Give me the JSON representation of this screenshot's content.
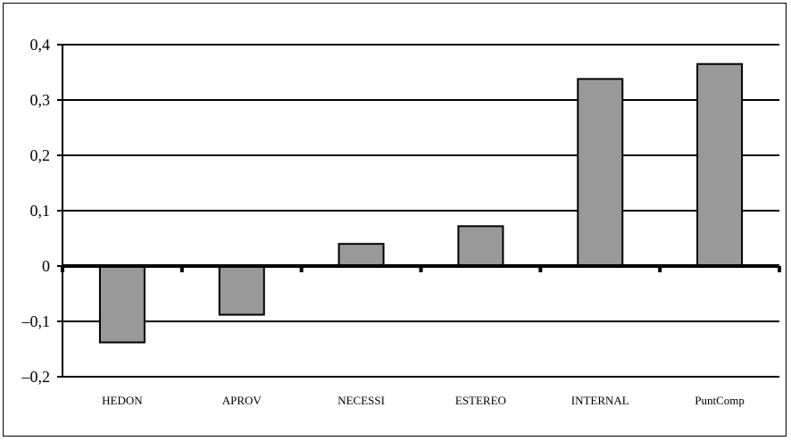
{
  "chart_data": {
    "type": "bar",
    "categories": [
      "HEDON",
      "APROV",
      "NECESSI",
      "ESTEREO",
      "INTERNAL",
      "PuntComp"
    ],
    "values": [
      -0.138,
      -0.088,
      0.04,
      0.072,
      0.338,
      0.365
    ],
    "ylim": [
      -0.2,
      0.4
    ],
    "yticks": [
      -0.2,
      -0.1,
      0,
      0.1,
      0.2,
      0.3,
      0.4
    ],
    "ytick_labels": [
      "–0,2",
      "–0,1",
      "0",
      "0,1",
      "0,2",
      "0,3",
      "0,4"
    ],
    "grid": true,
    "bar_color": "#999999",
    "title": "",
    "xlabel": "",
    "ylabel": ""
  }
}
